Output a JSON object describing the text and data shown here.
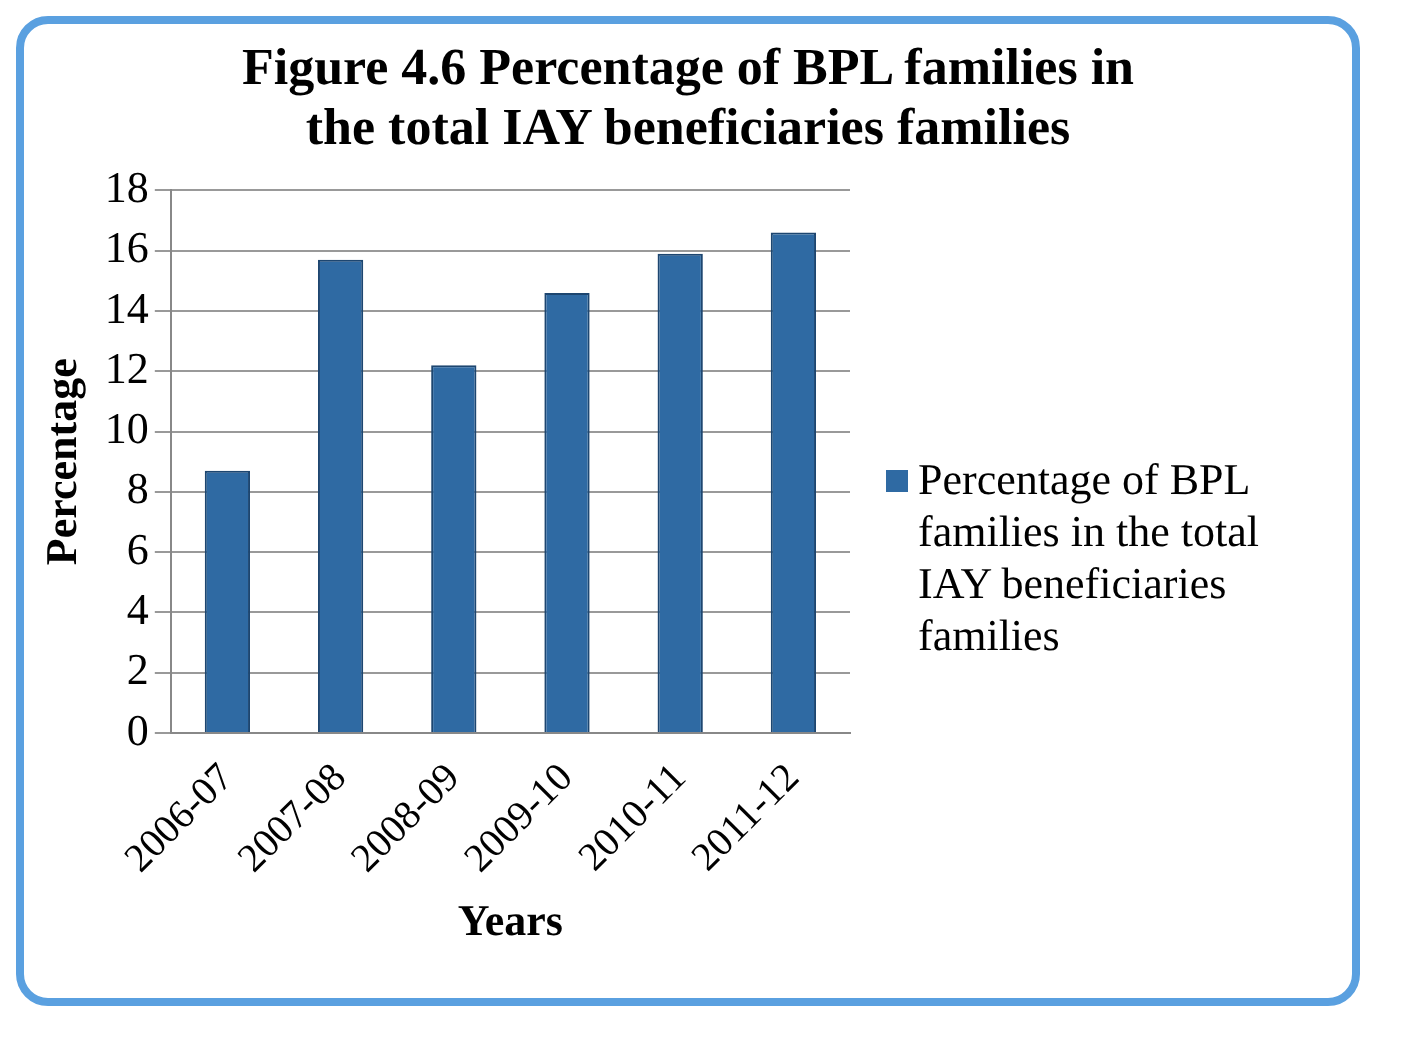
{
  "chart_data": {
    "type": "bar",
    "title": "Figure 4.6 Percentage of BPL families in the total  IAY beneficiaries families",
    "xlabel": "Years",
    "ylabel": "Percentage",
    "categories": [
      "2006-07",
      "2007-08",
      "2008-09",
      "2009-10",
      "2010-11",
      "2011-12"
    ],
    "series": [
      {
        "name": "Percentage of BPL families in the total IAY beneficiaries families",
        "color": "#2f6aa3",
        "values": [
          8.7,
          15.7,
          12.2,
          14.6,
          15.9,
          16.6
        ]
      }
    ],
    "ylim": [
      0,
      18
    ],
    "yticks": [
      0,
      2,
      4,
      6,
      8,
      10,
      12,
      14,
      16,
      18
    ],
    "grid": "y",
    "legend": "right"
  }
}
